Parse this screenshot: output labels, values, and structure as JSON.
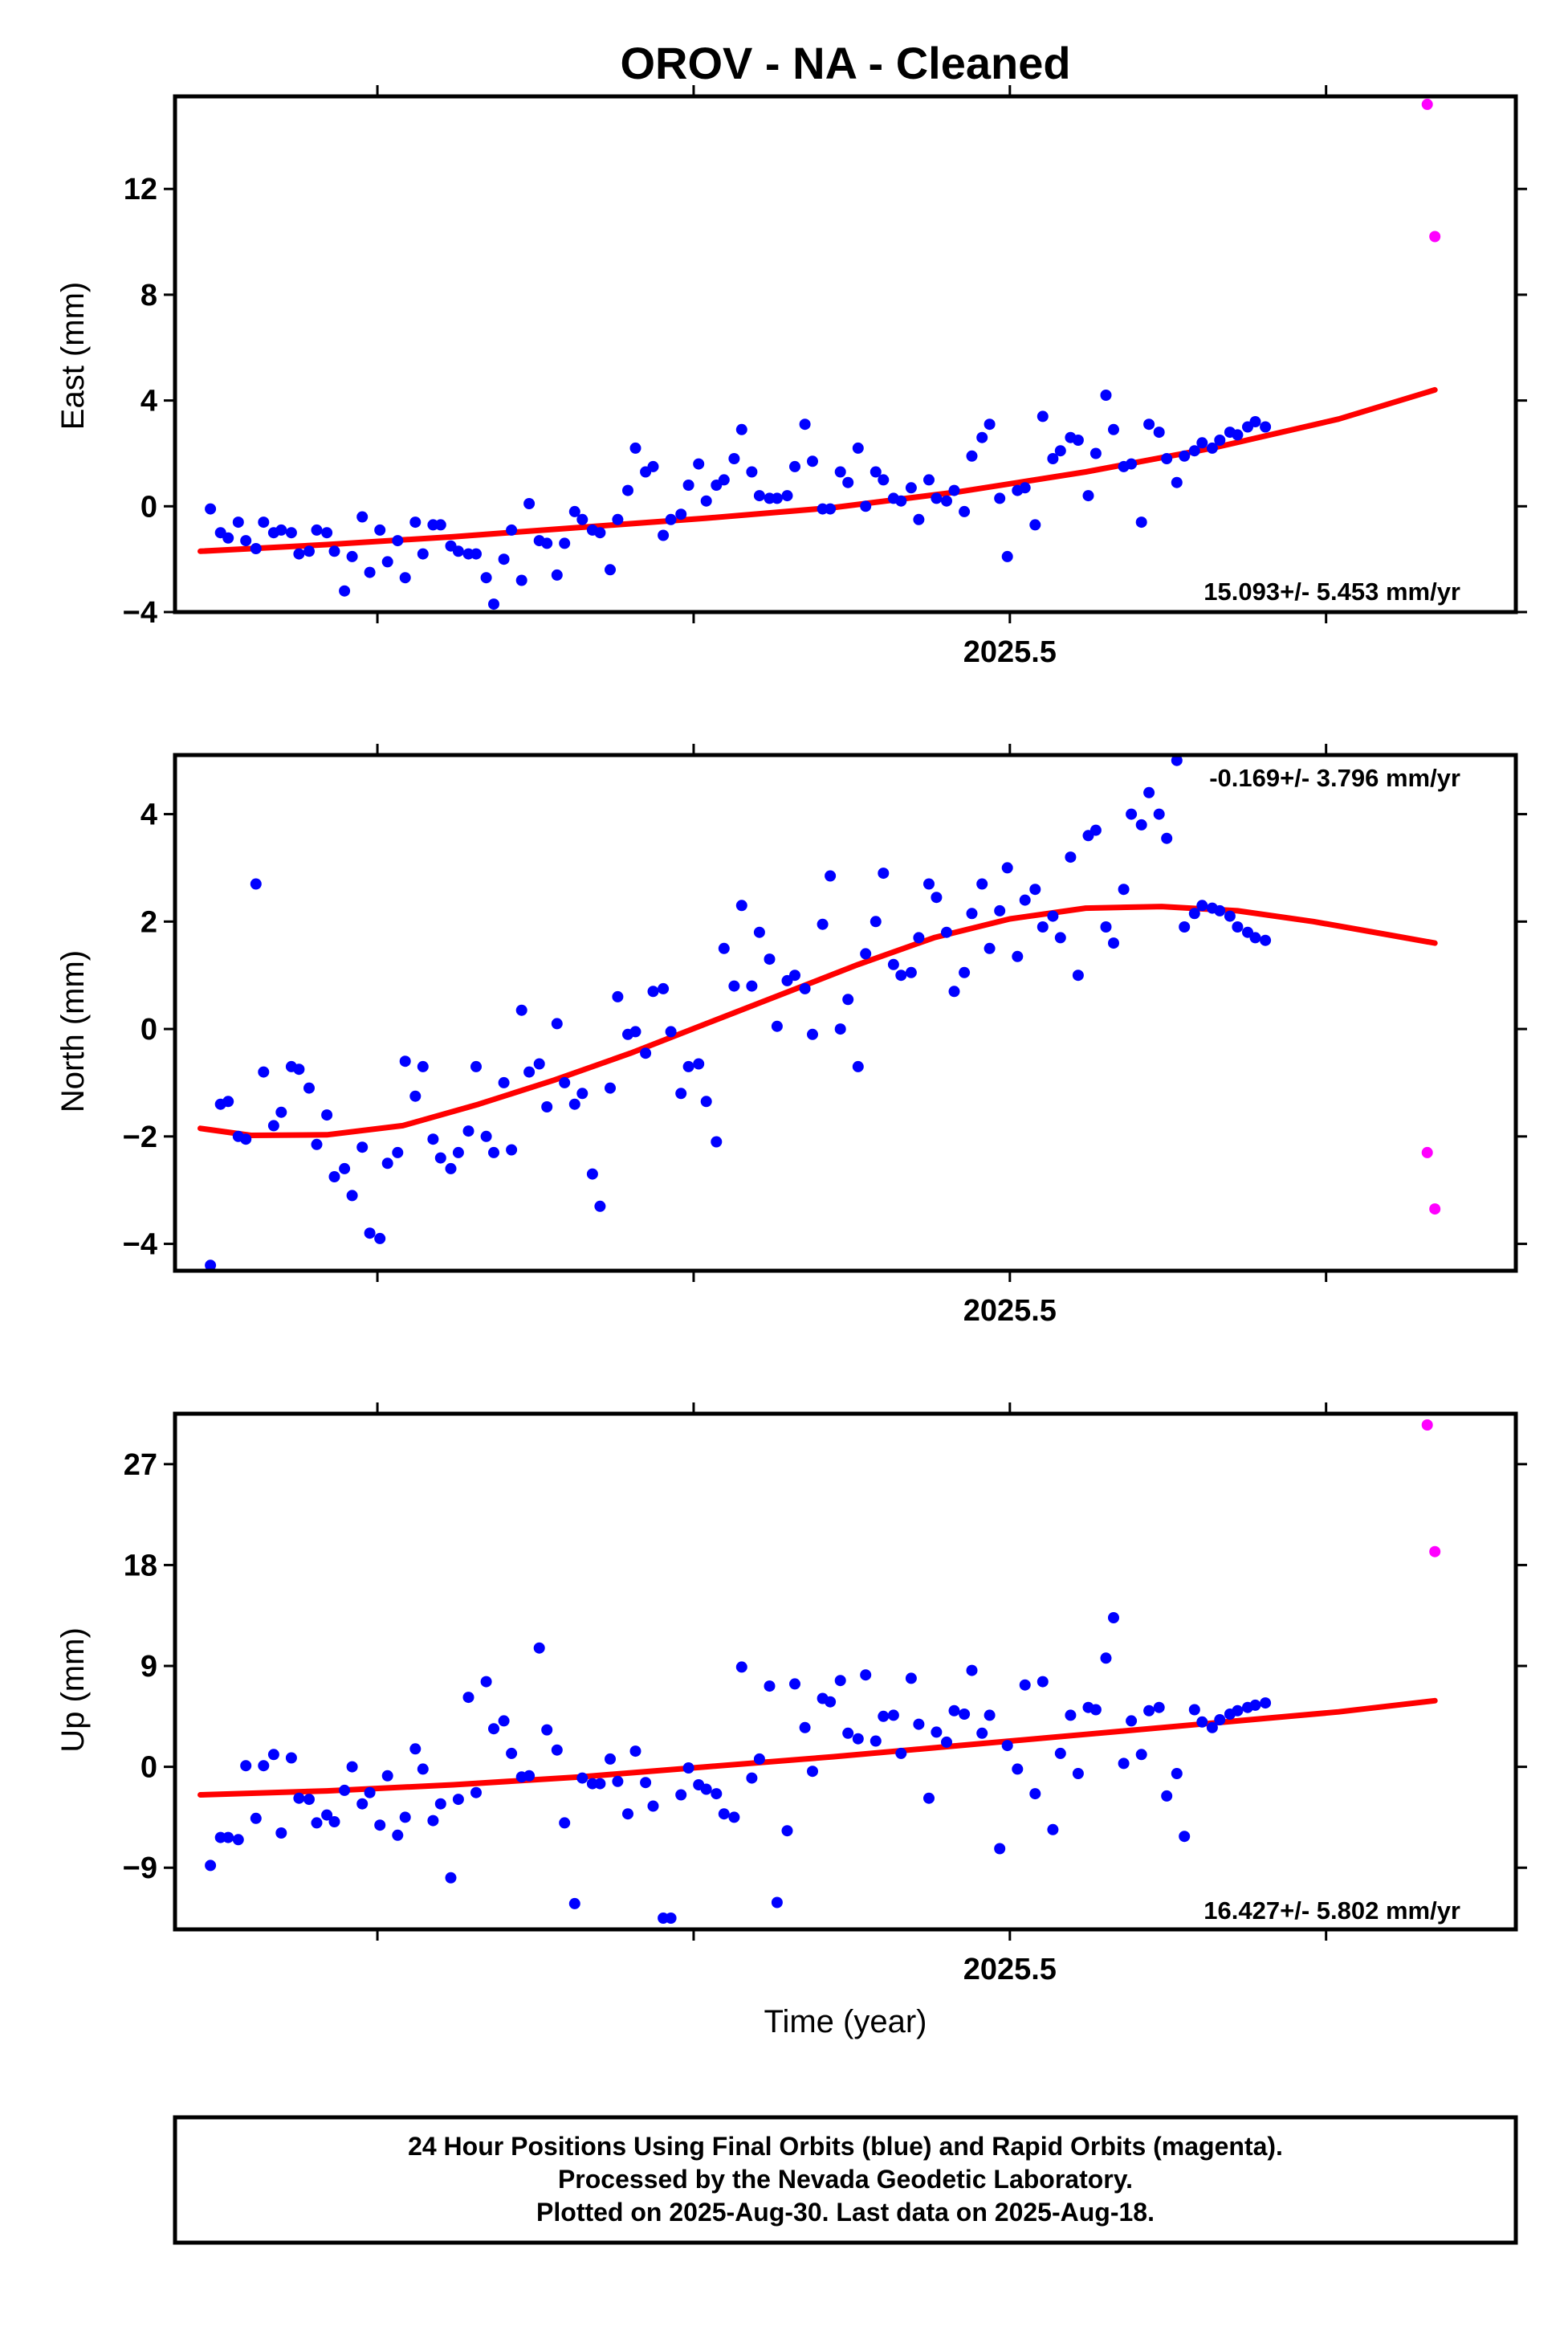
{
  "title": "OROV  - NA - Cleaned",
  "xlabel": "Time (year)",
  "footer": [
    "24 Hour Positions Using Final Orbits (blue) and Rapid Orbits (magenta).",
    "Processed by the Nevada Geodetic Laboratory.",
    "Plotted on 2025-Aug-30. Last data on 2025-Aug-18."
  ],
  "colors": {
    "final": "#0000ff",
    "rapid": "#ff00ff",
    "fit": "#ff0000",
    "frame": "#000000"
  },
  "chart_data": [
    {
      "type": "scatter",
      "panel": "east",
      "ylabel": "East (mm)",
      "rate": "15.093+/- 5.453 mm/yr",
      "xlim": [
        2025.17,
        2025.7
      ],
      "ylim": [
        -4,
        15.5
      ],
      "yticks": [
        -4,
        0,
        4,
        8,
        12
      ],
      "xticks": [
        2025.25,
        2025.375,
        2025.5,
        2025.625
      ],
      "xticklabels": [
        {
          "x": 2025.5,
          "label": "2025.5"
        }
      ],
      "series": [
        {
          "role": "final",
          "x": [
            2025.184,
            2025.188,
            2025.191,
            2025.195,
            2025.198,
            2025.202,
            2025.205,
            2025.209,
            2025.212,
            2025.216,
            2025.219,
            2025.223,
            2025.226,
            2025.23,
            2025.233,
            2025.237,
            2025.24,
            2025.244,
            2025.247,
            2025.251,
            2025.254,
            2025.258,
            2025.261,
            2025.265,
            2025.268,
            2025.272,
            2025.275,
            2025.279,
            2025.282,
            2025.286,
            2025.289,
            2025.293,
            2025.296,
            2025.3,
            2025.303,
            2025.307,
            2025.31,
            2025.314,
            2025.317,
            2025.321,
            2025.324,
            2025.328,
            2025.331,
            2025.335,
            2025.338,
            2025.342,
            2025.345,
            2025.349,
            2025.352,
            2025.356,
            2025.359,
            2025.363,
            2025.366,
            2025.37,
            2025.373,
            2025.377,
            2025.38,
            2025.384,
            2025.387,
            2025.391,
            2025.394,
            2025.398,
            2025.401,
            2025.405,
            2025.408,
            2025.412,
            2025.415,
            2025.419,
            2025.422,
            2025.426,
            2025.429,
            2025.433,
            2025.436,
            2025.44,
            2025.443,
            2025.447,
            2025.45,
            2025.454,
            2025.457,
            2025.461,
            2025.464,
            2025.468,
            2025.471,
            2025.475,
            2025.478,
            2025.482,
            2025.485,
            2025.489,
            2025.492,
            2025.496,
            2025.499,
            2025.503,
            2025.506,
            2025.51,
            2025.513,
            2025.517,
            2025.52,
            2025.524,
            2025.527,
            2025.531,
            2025.534,
            2025.538,
            2025.541,
            2025.545,
            2025.548,
            2025.552,
            2025.555,
            2025.559,
            2025.562,
            2025.566,
            2025.569,
            2025.573,
            2025.576,
            2025.58,
            2025.583,
            2025.587,
            2025.59,
            2025.594,
            2025.597,
            2025.601
          ],
          "y": [
            -0.1,
            -1.0,
            -1.2,
            -0.6,
            -1.3,
            -1.6,
            -0.6,
            -1.0,
            -0.9,
            -1.0,
            -1.8,
            -1.7,
            -0.9,
            -1.0,
            -1.7,
            -3.2,
            -1.9,
            -0.4,
            -2.5,
            -0.9,
            -2.1,
            -1.3,
            -2.7,
            -0.6,
            -1.8,
            -0.7,
            -0.7,
            -1.5,
            -1.7,
            -1.8,
            -1.8,
            -2.7,
            -3.7,
            -2.0,
            -0.9,
            -2.8,
            0.1,
            -1.3,
            -1.4,
            -2.6,
            -1.4,
            -0.2,
            -0.5,
            -0.9,
            -1.0,
            -2.4,
            -0.5,
            0.6,
            2.2,
            1.3,
            1.5,
            -1.1,
            -0.5,
            -0.3,
            0.8,
            1.6,
            0.2,
            0.8,
            1.0,
            1.8,
            2.9,
            1.3,
            0.4,
            0.3,
            0.3,
            0.4,
            1.5,
            3.1,
            1.7,
            -0.1,
            -0.1,
            1.3,
            0.9,
            2.2,
            0.0,
            1.3,
            1.0,
            0.3,
            0.2,
            0.7,
            -0.5,
            1.0,
            0.3,
            0.2,
            0.6,
            -0.2,
            1.9,
            2.6,
            3.1,
            0.3,
            -1.9,
            0.6,
            0.7,
            -0.7,
            3.4,
            1.8,
            2.1,
            2.6,
            2.5,
            0.4,
            2.0,
            4.2,
            2.9,
            1.5,
            1.6,
            -0.6,
            3.1,
            2.8,
            1.8,
            0.9,
            1.9,
            2.1,
            2.4,
            2.2,
            2.5,
            2.8,
            2.7,
            3.0,
            3.2,
            3.0
          ]
        },
        {
          "role": "rapid",
          "x": [
            2025.665,
            2025.668
          ],
          "y": [
            15.2,
            10.2
          ]
        }
      ],
      "fit": {
        "x": [
          2025.18,
          2025.23,
          2025.28,
          2025.33,
          2025.38,
          2025.43,
          2025.48,
          2025.53,
          2025.58,
          2025.63,
          2025.668
        ],
        "y": [
          -1.7,
          -1.45,
          -1.15,
          -0.8,
          -0.45,
          -0.05,
          0.55,
          1.3,
          2.2,
          3.3,
          4.4
        ]
      }
    },
    {
      "type": "scatter",
      "panel": "north",
      "ylabel": "North (mm)",
      "rate": "-0.169+/- 3.796 mm/yr",
      "xlim": [
        2025.17,
        2025.7
      ],
      "ylim": [
        -4.5,
        5.1
      ],
      "yticks": [
        -4,
        -2,
        0,
        2,
        4
      ],
      "xticks": [
        2025.25,
        2025.375,
        2025.5,
        2025.625
      ],
      "xticklabels": [
        {
          "x": 2025.5,
          "label": "2025.5"
        }
      ],
      "series": [
        {
          "role": "final",
          "x": [
            2025.184,
            2025.188,
            2025.191,
            2025.195,
            2025.198,
            2025.202,
            2025.205,
            2025.209,
            2025.212,
            2025.216,
            2025.219,
            2025.223,
            2025.226,
            2025.23,
            2025.233,
            2025.237,
            2025.24,
            2025.244,
            2025.247,
            2025.251,
            2025.254,
            2025.258,
            2025.261,
            2025.265,
            2025.268,
            2025.272,
            2025.275,
            2025.279,
            2025.282,
            2025.286,
            2025.289,
            2025.293,
            2025.296,
            2025.3,
            2025.303,
            2025.307,
            2025.31,
            2025.314,
            2025.317,
            2025.321,
            2025.324,
            2025.328,
            2025.331,
            2025.335,
            2025.338,
            2025.342,
            2025.345,
            2025.349,
            2025.352,
            2025.356,
            2025.359,
            2025.363,
            2025.366,
            2025.37,
            2025.373,
            2025.377,
            2025.38,
            2025.384,
            2025.387,
            2025.391,
            2025.394,
            2025.398,
            2025.401,
            2025.405,
            2025.408,
            2025.412,
            2025.415,
            2025.419,
            2025.422,
            2025.426,
            2025.429,
            2025.433,
            2025.436,
            2025.44,
            2025.443,
            2025.447,
            2025.45,
            2025.454,
            2025.457,
            2025.461,
            2025.464,
            2025.468,
            2025.471,
            2025.475,
            2025.478,
            2025.482,
            2025.485,
            2025.489,
            2025.492,
            2025.496,
            2025.499,
            2025.503,
            2025.506,
            2025.51,
            2025.513,
            2025.517,
            2025.52,
            2025.524,
            2025.527,
            2025.531,
            2025.534,
            2025.538,
            2025.541,
            2025.545,
            2025.548,
            2025.552,
            2025.555,
            2025.559,
            2025.562,
            2025.566,
            2025.569,
            2025.573,
            2025.576,
            2025.58,
            2025.583,
            2025.587,
            2025.59,
            2025.594,
            2025.597,
            2025.601
          ],
          "y": [
            -4.4,
            -1.4,
            -1.35,
            -2.0,
            -2.05,
            2.7,
            -0.8,
            -1.8,
            -1.55,
            -0.7,
            -0.75,
            -1.1,
            -2.15,
            -1.6,
            -2.75,
            -2.6,
            -3.1,
            -2.2,
            -3.8,
            -3.9,
            -2.5,
            -2.3,
            -0.6,
            -1.25,
            -0.7,
            -2.05,
            -2.4,
            -2.6,
            -2.3,
            -1.9,
            -0.7,
            -2.0,
            -2.3,
            -1.0,
            -2.25,
            0.35,
            -0.8,
            -0.65,
            -1.45,
            0.1,
            -1.0,
            -1.4,
            -1.2,
            -2.7,
            -3.3,
            -1.1,
            0.6,
            -0.1,
            -0.05,
            -0.45,
            0.7,
            0.75,
            -0.05,
            -1.2,
            -0.7,
            -0.65,
            -1.35,
            -2.1,
            1.5,
            0.8,
            2.3,
            0.8,
            1.8,
            1.3,
            0.05,
            0.9,
            1.0,
            0.75,
            -0.1,
            1.95,
            2.85,
            0.0,
            0.55,
            -0.7,
            1.4,
            2.0,
            2.9,
            1.2,
            1.0,
            1.05,
            1.7,
            2.7,
            2.45,
            1.8,
            0.7,
            1.05,
            2.15,
            2.7,
            1.5,
            2.2,
            3.0,
            1.35,
            2.4,
            2.6,
            1.9,
            2.1,
            1.7,
            3.2,
            1.0,
            3.6,
            3.7,
            1.9,
            1.6,
            2.6,
            4.0,
            3.8,
            4.4,
            4.0,
            3.55,
            5.0,
            1.9,
            2.15,
            2.3,
            2.25,
            2.2,
            2.1,
            1.9,
            1.8,
            1.7,
            1.65
          ]
        },
        {
          "role": "rapid",
          "x": [
            2025.665,
            2025.668
          ],
          "y": [
            -2.3,
            -3.35
          ]
        }
      ],
      "fit": {
        "x": [
          2025.18,
          2025.2,
          2025.23,
          2025.26,
          2025.29,
          2025.32,
          2025.35,
          2025.38,
          2025.41,
          2025.44,
          2025.47,
          2025.5,
          2025.53,
          2025.56,
          2025.59,
          2025.62,
          2025.65,
          2025.668
        ],
        "y": [
          -1.85,
          -1.98,
          -1.97,
          -1.8,
          -1.4,
          -0.95,
          -0.45,
          0.1,
          0.65,
          1.2,
          1.7,
          2.05,
          2.25,
          2.28,
          2.2,
          2.0,
          1.75,
          1.6
        ]
      }
    },
    {
      "type": "scatter",
      "panel": "up",
      "ylabel": "Up (mm)",
      "rate": "16.427+/- 5.802 mm/yr",
      "xlim": [
        2025.17,
        2025.7
      ],
      "ylim": [
        -14.5,
        31.5
      ],
      "yticks": [
        -9,
        0,
        9,
        18,
        27
      ],
      "xticks": [
        2025.25,
        2025.375,
        2025.5,
        2025.625
      ],
      "xticklabels": [
        {
          "x": 2025.5,
          "label": "2025.5"
        }
      ],
      "series": [
        {
          "role": "final",
          "x": [
            2025.184,
            2025.188,
            2025.191,
            2025.195,
            2025.198,
            2025.202,
            2025.205,
            2025.209,
            2025.212,
            2025.216,
            2025.219,
            2025.223,
            2025.226,
            2025.23,
            2025.233,
            2025.237,
            2025.24,
            2025.244,
            2025.247,
            2025.251,
            2025.254,
            2025.258,
            2025.261,
            2025.265,
            2025.268,
            2025.272,
            2025.275,
            2025.279,
            2025.282,
            2025.286,
            2025.289,
            2025.293,
            2025.296,
            2025.3,
            2025.303,
            2025.307,
            2025.31,
            2025.314,
            2025.317,
            2025.321,
            2025.324,
            2025.328,
            2025.331,
            2025.335,
            2025.338,
            2025.342,
            2025.345,
            2025.349,
            2025.352,
            2025.356,
            2025.359,
            2025.363,
            2025.366,
            2025.37,
            2025.373,
            2025.377,
            2025.38,
            2025.384,
            2025.387,
            2025.391,
            2025.394,
            2025.398,
            2025.401,
            2025.405,
            2025.408,
            2025.412,
            2025.415,
            2025.419,
            2025.422,
            2025.426,
            2025.429,
            2025.433,
            2025.436,
            2025.44,
            2025.443,
            2025.447,
            2025.45,
            2025.454,
            2025.457,
            2025.461,
            2025.464,
            2025.468,
            2025.471,
            2025.475,
            2025.478,
            2025.482,
            2025.485,
            2025.489,
            2025.492,
            2025.496,
            2025.499,
            2025.503,
            2025.506,
            2025.51,
            2025.513,
            2025.517,
            2025.52,
            2025.524,
            2025.527,
            2025.531,
            2025.534,
            2025.538,
            2025.541,
            2025.545,
            2025.548,
            2025.552,
            2025.555,
            2025.559,
            2025.562,
            2025.566,
            2025.569,
            2025.573,
            2025.576,
            2025.58,
            2025.583,
            2025.587,
            2025.59,
            2025.594,
            2025.597,
            2025.601
          ],
          "y": [
            -8.8,
            -6.3,
            -6.3,
            -6.5,
            0.1,
            -4.6,
            0.1,
            1.1,
            -5.9,
            0.8,
            -2.8,
            -2.9,
            -5.0,
            -4.3,
            -4.9,
            -2.1,
            0.0,
            -3.3,
            -2.3,
            -5.2,
            -0.8,
            -6.1,
            -4.5,
            1.6,
            -0.2,
            -4.8,
            -3.3,
            -9.9,
            -2.9,
            6.2,
            -2.3,
            7.6,
            3.4,
            4.1,
            1.2,
            -0.9,
            -0.8,
            10.6,
            3.3,
            1.5,
            -5.0,
            -12.2,
            -1.0,
            -1.5,
            -1.5,
            0.7,
            -1.3,
            -4.2,
            1.4,
            -1.4,
            -3.5,
            -13.5,
            -13.5,
            -2.5,
            -0.1,
            -1.6,
            -2.0,
            -2.4,
            -4.2,
            -4.5,
            8.9,
            -1.0,
            0.7,
            7.2,
            -12.1,
            -5.7,
            7.4,
            3.5,
            -0.4,
            6.1,
            5.8,
            7.7,
            3.0,
            2.5,
            8.2,
            2.3,
            4.5,
            4.6,
            1.2,
            7.9,
            3.8,
            -2.8,
            3.1,
            2.2,
            5.0,
            4.7,
            8.6,
            3.0,
            4.6,
            -7.3,
            1.9,
            -0.2,
            7.3,
            -2.4,
            7.6,
            -5.6,
            1.2,
            4.6,
            -0.6,
            5.3,
            5.1,
            9.7,
            13.3,
            0.3,
            4.1,
            1.1,
            5.0,
            5.3,
            -2.6,
            -0.6,
            -6.2,
            5.1,
            4.0,
            3.5,
            4.2,
            4.7,
            5.0,
            5.3,
            5.5,
            5.7
          ]
        },
        {
          "role": "rapid",
          "x": [
            2025.665,
            2025.668
          ],
          "y": [
            30.5,
            19.2
          ]
        }
      ],
      "fit": {
        "x": [
          2025.18,
          2025.23,
          2025.28,
          2025.33,
          2025.38,
          2025.43,
          2025.48,
          2025.53,
          2025.58,
          2025.63,
          2025.668
        ],
        "y": [
          -2.5,
          -2.15,
          -1.6,
          -0.9,
          0.0,
          0.9,
          1.9,
          2.9,
          3.9,
          4.9,
          5.9
        ]
      }
    }
  ]
}
